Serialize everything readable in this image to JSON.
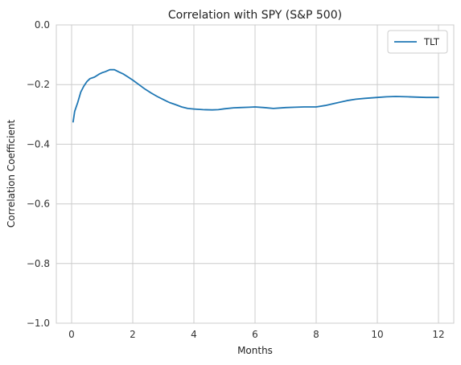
{
  "chart_data": {
    "type": "line",
    "title": "Correlation with SPY (S&P 500)",
    "xlabel": "Months",
    "ylabel": "Correlation Coefficient",
    "xlim": [
      -0.5,
      12.5
    ],
    "ylim": [
      -1.0,
      0.0
    ],
    "xticks": [
      0,
      2,
      4,
      6,
      8,
      10,
      12
    ],
    "xtick_labels": [
      "0",
      "2",
      "4",
      "6",
      "8",
      "10",
      "12"
    ],
    "yticks": [
      0.0,
      -0.2,
      -0.4,
      -0.6,
      -0.8,
      -1.0
    ],
    "ytick_labels": [
      "0.0",
      "−0.2",
      "−0.4",
      "−0.6",
      "−0.8",
      "−1.0"
    ],
    "grid": true,
    "legend_position": "top-right",
    "series": [
      {
        "name": "TLT",
        "color": "#1f77b4",
        "x": [
          0.05,
          0.1,
          0.2,
          0.3,
          0.4,
          0.5,
          0.6,
          0.75,
          0.9,
          1.0,
          1.1,
          1.25,
          1.4,
          1.55,
          1.7,
          1.85,
          2.0,
          2.2,
          2.4,
          2.6,
          2.8,
          3.0,
          3.2,
          3.4,
          3.6,
          3.8,
          4.0,
          4.3,
          4.6,
          4.8,
          5.0,
          5.3,
          5.5,
          5.8,
          6.0,
          6.3,
          6.6,
          7.0,
          7.3,
          7.6,
          8.0,
          8.3,
          8.6,
          9.0,
          9.3,
          9.6,
          10.0,
          10.3,
          10.6,
          11.0,
          11.3,
          11.6,
          12.0
        ],
        "y": [
          -0.325,
          -0.29,
          -0.26,
          -0.225,
          -0.205,
          -0.19,
          -0.18,
          -0.175,
          -0.165,
          -0.16,
          -0.157,
          -0.15,
          -0.15,
          -0.158,
          -0.165,
          -0.175,
          -0.185,
          -0.2,
          -0.215,
          -0.228,
          -0.24,
          -0.25,
          -0.26,
          -0.267,
          -0.275,
          -0.28,
          -0.282,
          -0.284,
          -0.285,
          -0.284,
          -0.281,
          -0.278,
          -0.277,
          -0.276,
          -0.275,
          -0.277,
          -0.28,
          -0.277,
          -0.276,
          -0.275,
          -0.275,
          -0.27,
          -0.263,
          -0.254,
          -0.249,
          -0.246,
          -0.243,
          -0.241,
          -0.24,
          -0.241,
          -0.242,
          -0.243,
          -0.243
        ]
      }
    ]
  }
}
